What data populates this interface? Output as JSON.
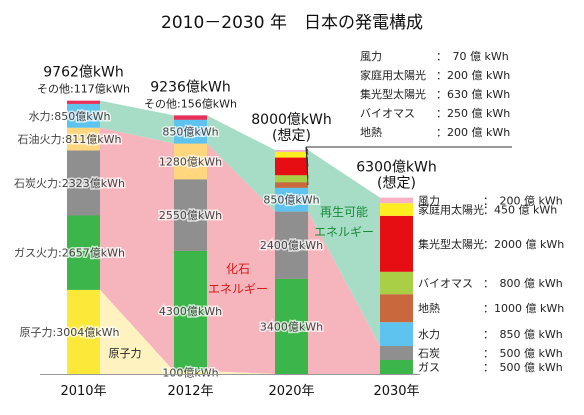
{
  "chart_data": {
    "type": "bar",
    "title": "2010－2030 年　日本の発電構成",
    "unit": "億kWh",
    "categories": [
      "2010年",
      "2012年",
      "2020年",
      "2030年"
    ],
    "totals": [
      "9762億kWh",
      "9236億kWh",
      "8000億kWh\n(想定)",
      "6300億kWh\n(想定)"
    ],
    "others_labels": [
      "その他:117億kWh",
      "その他:156億kWh"
    ],
    "region_labels": {
      "fossil": "化石\nエネルギー",
      "renewable": "再生可能\nエネルギー",
      "nuclear": "原子力"
    },
    "series": [
      {
        "name": "原子力",
        "color": "#fbe93a",
        "values": [
          3004,
          100,
          0,
          0
        ]
      },
      {
        "name": "ガス",
        "color": "#3cb54a",
        "values": [
          2657,
          4300,
          3400,
          500
        ]
      },
      {
        "name": "石炭",
        "color": "#8f8f8f",
        "values": [
          2323,
          2550,
          2400,
          500
        ]
      },
      {
        "name": "石油",
        "color": "#fdd67e",
        "values": [
          811,
          1280,
          0,
          0
        ]
      },
      {
        "name": "水力",
        "color": "#5ec3ee",
        "values": [
          850,
          850,
          850,
          850
        ]
      },
      {
        "name": "地熱",
        "color": "#c8683c",
        "values": [
          0,
          0,
          200,
          1000
        ]
      },
      {
        "name": "バイオマス",
        "color": "#a8cf46",
        "values": [
          0,
          0,
          250,
          800
        ]
      },
      {
        "name": "集光型太陽光",
        "color": "#e60e12",
        "values": [
          0,
          0,
          630,
          2000
        ]
      },
      {
        "name": "家庭用太陽光",
        "color": "#fcee21",
        "values": [
          0,
          0,
          200,
          450
        ]
      },
      {
        "name": "風力",
        "color": "#f8b2c6",
        "values": [
          0,
          0,
          70,
          200
        ]
      },
      {
        "name": "その他",
        "color": "#e8315a",
        "values": [
          117,
          156,
          0,
          0
        ]
      }
    ],
    "bar_labels": [
      [
        "原子力:3004億kWh",
        "ガス火力:2657億kWh",
        "石炭火力:2323億kWh",
        "石油火力:811億kWh",
        "水力:850億kWh"
      ],
      [
        "100億kWh",
        "4300億kWh",
        "2550億kWh",
        "1280億kWh",
        "850億kWh"
      ],
      [
        "",
        "3400億kWh",
        "2400億kWh",
        "",
        "850億kWh"
      ]
    ],
    "legend_2020": [
      {
        "name": "風力",
        "value": "：　70 億 kWh"
      },
      {
        "name": "家庭用太陽光",
        "value": "：200 億 kWh"
      },
      {
        "name": "集光型太陽光",
        "value": "：630 億 kWh"
      },
      {
        "name": "バイオマス",
        "value": "：250 億 kWh"
      },
      {
        "name": "地熱",
        "value": "：200 億 kWh"
      }
    ],
    "legend_2030": [
      {
        "name": "風力",
        "value": "：　200 億 kWh"
      },
      {
        "name": "家庭用太陽光",
        "value": "：450 億 kWh"
      },
      {
        "name": "集光型太陽光",
        "value": "：2000 億 kWh"
      },
      {
        "name": "バイオマス",
        "value": "：　800 億 kWh"
      },
      {
        "name": "地熱",
        "value": "：1000 億 kWh"
      },
      {
        "name": "水力",
        "value": "：　850 億 kWh"
      },
      {
        "name": "石炭",
        "value": "：　500 億 kWh"
      },
      {
        "name": "ガス",
        "value": "：　500 億 kWh"
      }
    ],
    "colors": {
      "fossil_area": "#f6b5bd",
      "renewable_area": "#a7ddc6",
      "nuclear_area": "#fdf2c0",
      "region_text_red": "#d11b1b",
      "region_text_green": "#1a8a3a"
    }
  }
}
